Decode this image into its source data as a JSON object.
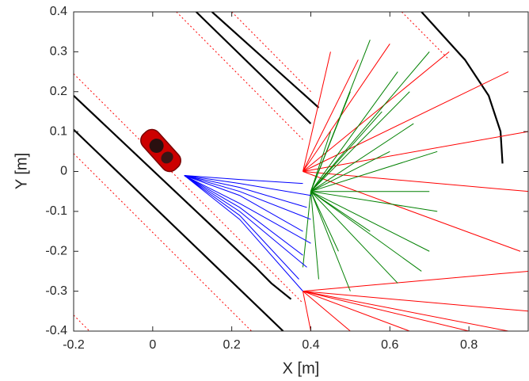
{
  "chart_data": {
    "type": "line",
    "xlabel": "X [m]",
    "ylabel": "Y [m]",
    "xlim": [
      -0.2,
      0.95
    ],
    "ylim": [
      -0.4,
      0.4
    ],
    "xticks": [
      -0.2,
      0,
      0.2,
      0.4,
      0.6,
      0.8
    ],
    "yticks": [
      -0.4,
      -0.3,
      -0.2,
      -0.1,
      0,
      0.1,
      0.2,
      0.3,
      0.4
    ],
    "grid": false,
    "box": true,
    "series": [
      {
        "color": "#000000",
        "x": [
          -0.2,
          0.33
        ],
        "values": [
          0.105,
          -0.4
        ]
      },
      {
        "color": "#000000",
        "x": [
          -0.2,
          0.26,
          0.3,
          0.35
        ],
        "values": [
          0.19,
          -0.24,
          -0.28,
          -0.32
        ]
      },
      {
        "color": "#000000",
        "x": [
          0.11,
          0.4
        ],
        "values": [
          0.4,
          0.12
        ]
      },
      {
        "color": "#000000",
        "x": [
          0.15,
          0.42
        ],
        "values": [
          0.4,
          0.16
        ]
      },
      {
        "color": "#000000",
        "x": [
          0.68,
          0.79,
          0.85,
          0.88,
          0.885
        ],
        "values": [
          0.4,
          0.28,
          0.19,
          0.1,
          0.02
        ]
      },
      {
        "color": "#ff0000",
        "dash": true,
        "x": [
          -0.2,
          0.38
        ],
        "values": [
          0.245,
          -0.33
        ]
      },
      {
        "color": "#ff0000",
        "dash": true,
        "x": [
          -0.2,
          0.25
        ],
        "values": [
          0.045,
          -0.4
        ]
      },
      {
        "color": "#ff0000",
        "dash": true,
        "x": [
          0.06,
          0.38
        ],
        "values": [
          0.4,
          0.08
        ]
      },
      {
        "color": "#ff0000",
        "dash": true,
        "x": [
          0.2,
          0.4
        ],
        "values": [
          0.4,
          0.2
        ]
      },
      {
        "color": "#ff0000",
        "dash": true,
        "x": [
          0.63,
          0.75
        ],
        "values": [
          0.4,
          0.28
        ]
      },
      {
        "color": "#ff0000",
        "dash": true,
        "x": [
          -0.2,
          -0.16
        ],
        "values": [
          -0.36,
          -0.4
        ]
      },
      {
        "color": "#ff0000",
        "x": [
          0.38,
          0.45
        ],
        "values": [
          0.0,
          0.3
        ]
      },
      {
        "color": "#ff0000",
        "x": [
          0.38,
          0.52
        ],
        "values": [
          0.0,
          0.28
        ]
      },
      {
        "color": "#ff0000",
        "x": [
          0.38,
          0.6
        ],
        "values": [
          0.0,
          0.32
        ]
      },
      {
        "color": "#ff0000",
        "x": [
          0.38,
          0.75
        ],
        "values": [
          0.0,
          0.3
        ]
      },
      {
        "color": "#ff0000",
        "x": [
          0.38,
          0.9
        ],
        "values": [
          0.0,
          0.25
        ]
      },
      {
        "color": "#ff0000",
        "x": [
          0.38,
          0.95
        ],
        "values": [
          0.0,
          0.1
        ]
      },
      {
        "color": "#ff0000",
        "x": [
          0.38,
          0.95
        ],
        "values": [
          0.0,
          -0.05
        ]
      },
      {
        "color": "#ff0000",
        "x": [
          0.38,
          0.93
        ],
        "values": [
          0.0,
          -0.2
        ]
      },
      {
        "color": "#ff0000",
        "x": [
          0.38,
          0.4
        ],
        "values": [
          -0.3,
          -0.4
        ]
      },
      {
        "color": "#ff0000",
        "x": [
          0.38,
          0.5
        ],
        "values": [
          -0.3,
          -0.4
        ]
      },
      {
        "color": "#ff0000",
        "x": [
          0.38,
          0.65
        ],
        "values": [
          -0.3,
          -0.4
        ]
      },
      {
        "color": "#ff0000",
        "x": [
          0.38,
          0.8
        ],
        "values": [
          -0.3,
          -0.4
        ]
      },
      {
        "color": "#ff0000",
        "x": [
          0.38,
          0.9
        ],
        "values": [
          -0.3,
          -0.4
        ]
      },
      {
        "color": "#ff0000",
        "x": [
          0.38,
          0.95
        ],
        "values": [
          -0.3,
          -0.35
        ]
      },
      {
        "color": "#ff0000",
        "x": [
          0.38,
          0.95
        ],
        "values": [
          -0.3,
          -0.25
        ]
      },
      {
        "color": "#008000",
        "x": [
          0.4,
          0.55
        ],
        "values": [
          -0.05,
          0.33
        ]
      },
      {
        "color": "#008000",
        "x": [
          0.4,
          0.7
        ],
        "values": [
          -0.05,
          0.3
        ]
      },
      {
        "color": "#008000",
        "x": [
          0.4,
          0.62
        ],
        "values": [
          -0.05,
          0.25
        ]
      },
      {
        "color": "#008000",
        "x": [
          0.4,
          0.5
        ],
        "values": [
          -0.05,
          0.2
        ]
      },
      {
        "color": "#008000",
        "x": [
          0.4,
          0.66
        ],
        "values": [
          -0.05,
          0.12
        ]
      },
      {
        "color": "#008000",
        "x": [
          0.4,
          0.72
        ],
        "values": [
          -0.05,
          0.05
        ]
      },
      {
        "color": "#008000",
        "x": [
          0.4,
          0.72
        ],
        "values": [
          -0.05,
          -0.1
        ]
      },
      {
        "color": "#008000",
        "x": [
          0.4,
          0.7
        ],
        "values": [
          -0.05,
          -0.2
        ]
      },
      {
        "color": "#008000",
        "x": [
          0.4,
          0.62
        ],
        "values": [
          -0.05,
          -0.28
        ]
      },
      {
        "color": "#008000",
        "x": [
          0.4,
          0.5
        ],
        "values": [
          -0.05,
          -0.3
        ]
      },
      {
        "color": "#008000",
        "x": [
          0.4,
          0.42
        ],
        "values": [
          -0.05,
          -0.27
        ]
      },
      {
        "color": "#008000",
        "x": [
          0.4,
          0.6
        ],
        "values": [
          -0.05,
          0.05
        ]
      },
      {
        "color": "#008000",
        "x": [
          0.4,
          0.45
        ],
        "values": [
          -0.05,
          0.1
        ]
      },
      {
        "color": "#008000",
        "x": [
          0.4,
          0.55
        ],
        "values": [
          -0.05,
          -0.15
        ]
      },
      {
        "color": "#008000",
        "x": [
          0.4,
          0.68
        ],
        "values": [
          -0.05,
          -0.25
        ]
      },
      {
        "color": "#008000",
        "x": [
          0.4,
          0.38
        ],
        "values": [
          -0.05,
          -0.24
        ]
      },
      {
        "color": "#008000",
        "x": [
          0.4,
          0.58
        ],
        "values": [
          -0.05,
          0.15
        ]
      },
      {
        "color": "#008000",
        "x": [
          0.4,
          0.65
        ],
        "values": [
          -0.05,
          0.2
        ]
      },
      {
        "color": "#008000",
        "x": [
          0.4,
          0.47
        ],
        "values": [
          -0.05,
          -0.2
        ]
      },
      {
        "color": "#008000",
        "x": [
          0.4,
          0.7
        ],
        "values": [
          -0.05,
          -0.05
        ]
      },
      {
        "color": "#0000ff",
        "x": [
          0.08,
          0.22,
          0.38
        ],
        "values": [
          -0.01,
          -0.02,
          -0.03
        ]
      },
      {
        "color": "#0000ff",
        "x": [
          0.08,
          0.22,
          0.4
        ],
        "values": [
          -0.01,
          -0.03,
          -0.06
        ]
      },
      {
        "color": "#0000ff",
        "x": [
          0.08,
          0.22,
          0.39
        ],
        "values": [
          -0.01,
          -0.04,
          -0.09
        ]
      },
      {
        "color": "#0000ff",
        "x": [
          0.08,
          0.22,
          0.4
        ],
        "values": [
          -0.01,
          -0.05,
          -0.12
        ]
      },
      {
        "color": "#0000ff",
        "x": [
          0.08,
          0.22,
          0.38
        ],
        "values": [
          -0.01,
          -0.06,
          -0.15
        ]
      },
      {
        "color": "#0000ff",
        "x": [
          0.08,
          0.22,
          0.4
        ],
        "values": [
          -0.01,
          -0.08,
          -0.18
        ]
      },
      {
        "color": "#0000ff",
        "x": [
          0.08,
          0.22,
          0.38
        ],
        "values": [
          -0.01,
          -0.09,
          -0.21
        ]
      },
      {
        "color": "#0000ff",
        "x": [
          0.08,
          0.22,
          0.39
        ],
        "values": [
          -0.01,
          -0.1,
          -0.24
        ]
      },
      {
        "color": "#0000ff",
        "x": [
          0.08,
          0.22,
          0.37
        ],
        "values": [
          -0.01,
          -0.11,
          -0.27
        ]
      },
      {
        "color": "#0000ff",
        "x": [
          0.08,
          0.22,
          0.38
        ],
        "values": [
          -0.01,
          -0.12,
          -0.3
        ]
      }
    ]
  }
}
